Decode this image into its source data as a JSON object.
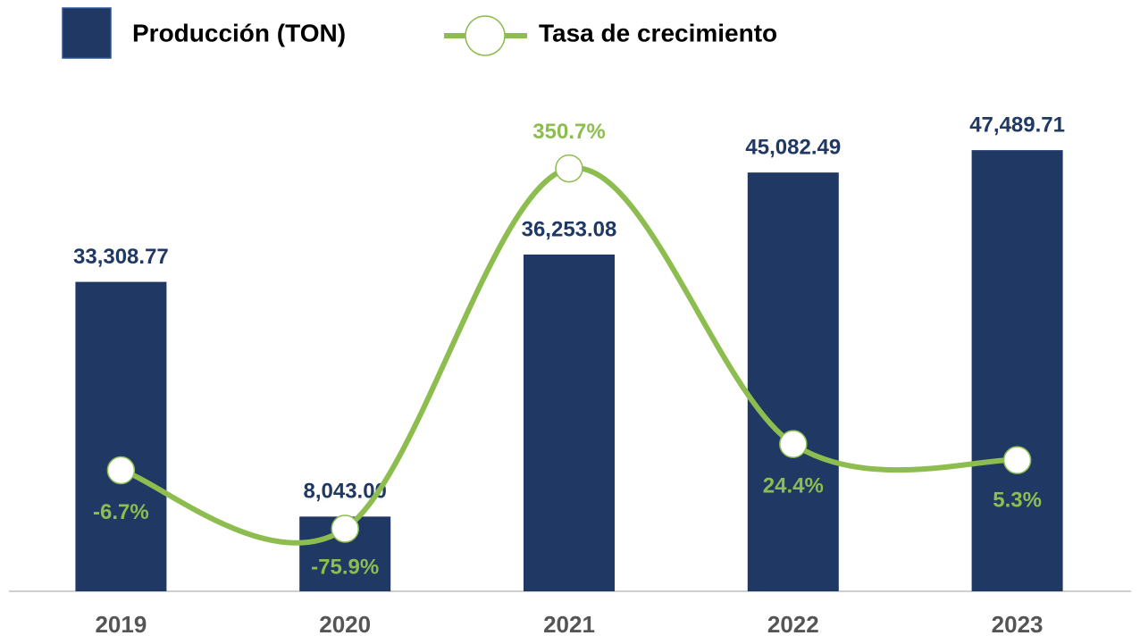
{
  "chart_data": {
    "type": "bar",
    "categories": [
      "2019",
      "2020",
      "2021",
      "2022",
      "2023"
    ],
    "series": [
      {
        "name": "Producción (TON)",
        "type": "bar",
        "color": "#1f3864",
        "values": [
          33308.77,
          8043.0,
          36253.08,
          45082.49,
          47489.71
        ],
        "value_labels": [
          "33,308.77",
          "8,043.00",
          "36,253.08",
          "45,082.49",
          "47,489.71"
        ]
      },
      {
        "name": "Tasa de crecimiento",
        "type": "line",
        "axis": "y2",
        "color": "#8dbd4f",
        "values": [
          -6.7,
          -75.9,
          350.7,
          24.4,
          5.3
        ],
        "value_labels": [
          "-6.7%",
          "-75.9%",
          "350.7%",
          "24.4%",
          "5.3%"
        ]
      }
    ],
    "ylim": [
      0,
      50000
    ],
    "y2lim": [
      -150,
      400
    ],
    "legend": "top-left"
  }
}
